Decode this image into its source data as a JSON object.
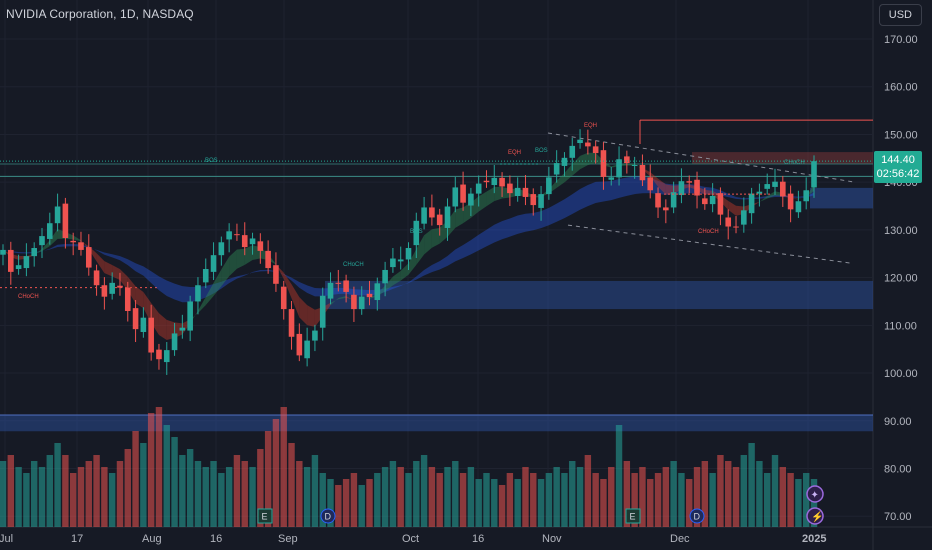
{
  "header": {
    "title": "NVIDIA Corporation, 1D, NASDAQ",
    "currency_button": "USD"
  },
  "last_price": {
    "value": "144.40",
    "countdown": "02:56:42"
  },
  "colors": {
    "up": "#26a69a",
    "down": "#ef5350",
    "background": "#161a25",
    "ribbon": "#2962ff"
  },
  "chart_data": {
    "type": "candlestick",
    "y_axis": {
      "range": [
        67,
        175
      ],
      "ticks": [
        "170.00",
        "160.00",
        "150.00",
        "140.00",
        "130.00",
        "120.00",
        "110.00",
        "100.00",
        "90.00",
        "80.00",
        "70.00"
      ]
    },
    "x_axis": {
      "labels": [
        "Jul",
        "17",
        "Aug",
        "16",
        "Sep",
        "Oct",
        "16",
        "Nov",
        "Dec",
        "2025"
      ]
    },
    "annotations": [
      "BOS",
      "BOS",
      "BOS",
      "CHoCH",
      "EQH",
      "EQH",
      "CHoCH",
      "CHoCH",
      "CHoCH"
    ],
    "event_markers": [
      "E",
      "D",
      "E",
      "D"
    ],
    "closes": [
      125.8,
      121.2,
      122.6,
      124.5,
      126.2,
      128.7,
      131.4,
      134.9,
      128.3,
      127.4,
      125.8,
      122.1,
      118.4,
      116.0,
      118.9,
      117.9,
      113.0,
      109.2,
      111.6,
      104.3,
      102.9,
      104.8,
      108.3,
      109.5,
      115.0,
      118.4,
      121.8,
      124.7,
      127.4,
      129.7,
      128.9,
      126.4,
      128.2,
      125.6,
      122.0,
      118.7,
      113.4,
      107.6,
      103.7,
      106.8,
      108.9,
      116.2,
      118.9,
      118.8,
      117.0,
      113.4,
      116.0,
      115.9,
      118.8,
      121.6,
      124.0,
      123.8,
      126.2,
      131.9,
      134.7,
      132.6,
      131.0,
      134.9,
      138.9,
      135.7,
      137.6,
      139.7,
      140.0,
      140.9,
      139.1,
      137.7,
      138.8,
      136.9,
      135.2,
      137.5,
      141.0,
      144.0,
      145.1,
      147.6,
      148.9,
      147.5,
      146.1,
      141.1,
      141.0,
      144.8,
      144.0,
      143.6,
      140.4,
      138.3,
      134.7,
      134.1,
      137.9,
      140.2,
      139.9,
      137.2,
      135.4,
      137.1,
      133.2,
      130.7,
      130.5,
      134.1,
      137.6,
      138.0,
      139.6,
      140.1,
      137.0,
      134.3,
      136.0,
      138.3,
      144.4
    ],
    "volumes_rel": [
      0.55,
      0.6,
      0.5,
      0.45,
      0.55,
      0.5,
      0.6,
      0.7,
      0.6,
      0.45,
      0.5,
      0.55,
      0.6,
      0.5,
      0.45,
      0.55,
      0.65,
      0.8,
      0.7,
      0.95,
      1.0,
      0.85,
      0.75,
      0.6,
      0.65,
      0.55,
      0.5,
      0.55,
      0.45,
      0.5,
      0.6,
      0.55,
      0.5,
      0.65,
      0.8,
      0.9,
      1.0,
      0.7,
      0.55,
      0.5,
      0.6,
      0.45,
      0.4,
      0.35,
      0.4,
      0.45,
      0.35,
      0.4,
      0.45,
      0.5,
      0.55,
      0.5,
      0.45,
      0.55,
      0.6,
      0.5,
      0.45,
      0.5,
      0.55,
      0.45,
      0.5,
      0.4,
      0.45,
      0.4,
      0.35,
      0.45,
      0.4,
      0.5,
      0.45,
      0.4,
      0.45,
      0.5,
      0.45,
      0.55,
      0.5,
      0.6,
      0.45,
      0.4,
      0.5,
      0.85,
      0.55,
      0.45,
      0.5,
      0.4,
      0.45,
      0.5,
      0.55,
      0.45,
      0.4,
      0.5,
      0.55,
      0.45,
      0.6,
      0.55,
      0.5,
      0.6,
      0.7,
      0.55,
      0.45,
      0.6,
      0.5,
      0.45,
      0.4,
      0.45,
      0.4
    ]
  }
}
